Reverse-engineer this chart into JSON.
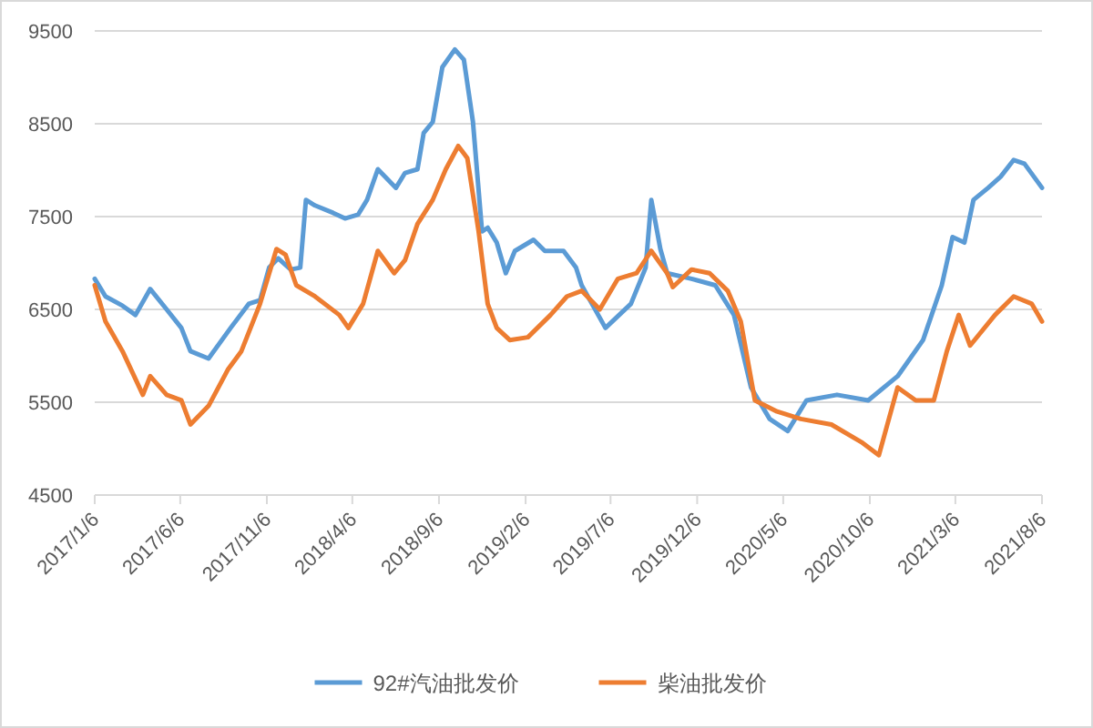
{
  "chart_data": {
    "type": "line",
    "series": [
      {
        "name": "92#汽油批发价",
        "color": "#5b9bd5",
        "x": [
          "2017-01-06",
          "2017-01-25",
          "2017-02-24",
          "2017-03-19",
          "2017-04-14",
          "2017-05-13",
          "2017-06-08",
          "2017-06-24",
          "2017-07-26",
          "2017-09-03",
          "2017-10-05",
          "2017-10-25",
          "2017-11-10",
          "2017-11-26",
          "2017-12-18",
          "2018-01-04",
          "2018-01-14",
          "2018-01-30",
          "2018-03-03",
          "2018-03-24",
          "2018-04-16",
          "2018-05-02",
          "2018-05-21",
          "2018-06-22",
          "2018-07-08",
          "2018-07-30",
          "2018-08-10",
          "2018-08-26",
          "2018-09-12",
          "2018-10-04",
          "2018-10-20",
          "2018-11-05",
          "2018-11-21",
          "2018-12-01",
          "2018-12-17",
          "2019-01-02",
          "2019-01-18",
          "2019-02-20",
          "2019-03-12",
          "2019-04-14",
          "2019-05-06",
          "2019-05-16",
          "2019-06-27",
          "2019-08-11",
          "2019-09-06",
          "2019-09-16",
          "2019-10-02",
          "2019-10-14",
          "2019-11-26",
          "2020-01-07",
          "2020-02-09",
          "2020-03-10",
          "2020-04-12",
          "2020-05-14",
          "2020-06-16",
          "2020-08-09",
          "2020-10-03",
          "2020-11-24",
          "2021-01-08",
          "2021-02-10",
          "2021-03-01",
          "2021-03-22",
          "2021-04-07",
          "2021-05-03",
          "2021-05-25",
          "2021-06-17",
          "2021-07-06",
          "2021-08-06"
        ],
        "values": [
          6830,
          6640,
          6540,
          6440,
          6720,
          6500,
          6300,
          6050,
          5970,
          6300,
          6560,
          6600,
          6950,
          7050,
          6930,
          6950,
          7680,
          7620,
          7540,
          7480,
          7520,
          7680,
          8010,
          7810,
          7970,
          8010,
          8400,
          8520,
          9110,
          9300,
          9190,
          8520,
          7340,
          7380,
          7220,
          6890,
          7130,
          7250,
          7130,
          7130,
          6950,
          6760,
          6300,
          6560,
          6950,
          7680,
          7150,
          6890,
          6830,
          6760,
          6440,
          5660,
          5320,
          5190,
          5520,
          5580,
          5520,
          5780,
          6170,
          6760,
          7280,
          7220,
          7680,
          7810,
          7930,
          8110,
          8070,
          7810
        ]
      },
      {
        "name": "柴油批发价",
        "color": "#ed7d31",
        "x": [
          "2017-01-06",
          "2017-01-25",
          "2017-02-24",
          "2017-04-01",
          "2017-04-14",
          "2017-05-13",
          "2017-06-08",
          "2017-06-24",
          "2017-07-26",
          "2017-08-29",
          "2017-09-22",
          "2017-10-25",
          "2017-11-23",
          "2017-12-09",
          "2017-12-28",
          "2018-01-30",
          "2018-03-14",
          "2018-03-30",
          "2018-04-25",
          "2018-05-21",
          "2018-06-19",
          "2018-07-08",
          "2018-07-30",
          "2018-08-26",
          "2018-09-18",
          "2018-10-10",
          "2018-10-26",
          "2018-11-15",
          "2018-12-01",
          "2018-12-17",
          "2019-01-09",
          "2019-02-10",
          "2019-03-22",
          "2019-04-20",
          "2019-05-16",
          "2019-06-17",
          "2019-07-19",
          "2019-08-21",
          "2019-09-16",
          "2019-10-14",
          "2019-10-24",
          "2019-11-26",
          "2019-12-28",
          "2020-01-29",
          "2020-02-21",
          "2020-03-17",
          "2020-04-25",
          "2020-06-06",
          "2020-07-30",
          "2020-09-21",
          "2020-10-22",
          "2020-11-24",
          "2020-12-26",
          "2021-01-27",
          "2021-02-19",
          "2021-03-12",
          "2021-04-01",
          "2021-05-15",
          "2021-06-17",
          "2021-07-19",
          "2021-08-06"
        ],
        "values": [
          6760,
          6370,
          6050,
          5580,
          5780,
          5580,
          5520,
          5260,
          5460,
          5850,
          6050,
          6560,
          7150,
          7090,
          6760,
          6640,
          6440,
          6300,
          6560,
          7130,
          6890,
          7030,
          7420,
          7680,
          8010,
          8260,
          8130,
          7340,
          6560,
          6300,
          6170,
          6200,
          6440,
          6640,
          6700,
          6500,
          6830,
          6890,
          7130,
          6890,
          6740,
          6930,
          6890,
          6700,
          6370,
          5520,
          5400,
          5320,
          5260,
          5070,
          4930,
          5660,
          5520,
          5520,
          6050,
          6440,
          6110,
          6440,
          6640,
          6560,
          6370
        ]
      }
    ],
    "xlim": [
      "2017-01-06",
      "2021-08-06"
    ],
    "xticks": [
      {
        "value": "2017-01-06",
        "label": "2017/1/6"
      },
      {
        "value": "2017-06-06",
        "label": "2017/6/6"
      },
      {
        "value": "2017-11-06",
        "label": "2017/11/6"
      },
      {
        "value": "2018-04-06",
        "label": "2018/4/6"
      },
      {
        "value": "2018-09-06",
        "label": "2018/9/6"
      },
      {
        "value": "2019-02-06",
        "label": "2019/2/6"
      },
      {
        "value": "2019-07-06",
        "label": "2019/7/6"
      },
      {
        "value": "2019-12-06",
        "label": "2019/12/6"
      },
      {
        "value": "2020-05-06",
        "label": "2020/5/6"
      },
      {
        "value": "2020-10-06",
        "label": "2020/10/6"
      },
      {
        "value": "2021-03-06",
        "label": "2021/3/6"
      },
      {
        "value": "2021-08-06",
        "label": "2021/8/6"
      }
    ],
    "ylim": [
      4500,
      9500
    ],
    "yticks": [
      4500,
      5500,
      6500,
      7500,
      8500,
      9500
    ],
    "grid": "y",
    "legend": "bottom",
    "marker": "none",
    "line_style": "solid"
  }
}
